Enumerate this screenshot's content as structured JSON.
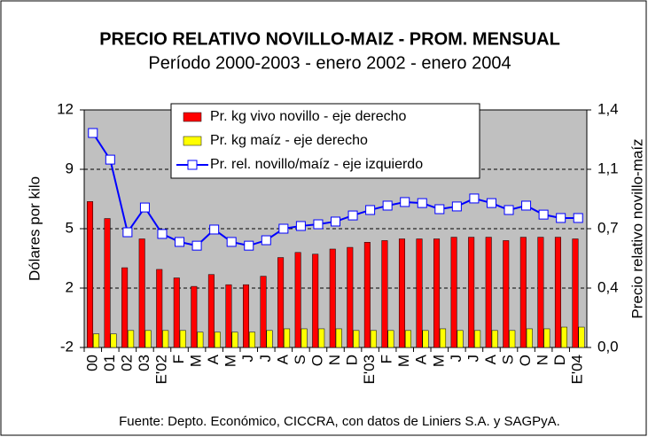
{
  "chart_data": {
    "type": "bar",
    "title": "PRECIO RELATIVO NOVILLO-MAIZ - PROM. MENSUAL",
    "subtitle": "Período 2000-2003 - enero 2002 - enero 2004",
    "ylabel": "Dólares por kilo",
    "y2label": "Precio relativo novillo-maíz",
    "source": "Fuente: Depto. Económico, CICCRA, con datos de Liniers S.A. y SAGPyA.",
    "categories": [
      "00",
      "01",
      "02",
      "03",
      "E'02",
      "F",
      "M",
      "A",
      "M",
      "J",
      "J",
      "A",
      "S",
      "O",
      "N",
      "D",
      "E'03",
      "F",
      "M",
      "A",
      "M",
      "J",
      "J",
      "A",
      "S",
      "O",
      "N",
      "D",
      "E'04"
    ],
    "series": [
      {
        "name": "Pr. kg vivo novillo - eje derecho",
        "type": "bar",
        "axis": "y2",
        "color": "#ff0000",
        "values": [
          0.86,
          0.76,
          0.47,
          0.64,
          0.46,
          0.41,
          0.36,
          0.43,
          0.37,
          0.37,
          0.42,
          0.53,
          0.56,
          0.55,
          0.58,
          0.59,
          0.62,
          0.63,
          0.64,
          0.64,
          0.64,
          0.65,
          0.65,
          0.65,
          0.63,
          0.65,
          0.65,
          0.65,
          0.64
        ]
      },
      {
        "name": "Pr. kg maíz - eje derecho",
        "type": "bar",
        "axis": "y2",
        "color": "#ffff00",
        "values": [
          0.08,
          0.08,
          0.1,
          0.1,
          0.1,
          0.1,
          0.09,
          0.09,
          0.09,
          0.09,
          0.1,
          0.11,
          0.11,
          0.11,
          0.11,
          0.1,
          0.1,
          0.1,
          0.1,
          0.1,
          0.11,
          0.1,
          0.1,
          0.1,
          0.1,
          0.11,
          0.11,
          0.12,
          0.12
        ]
      },
      {
        "name": "Pr. rel. novillo/maíz - eje izquierdo",
        "type": "line",
        "axis": "y",
        "color": "#0000ff",
        "values": [
          10.64,
          9.07,
          4.79,
          6.25,
          4.69,
          4.22,
          4.0,
          4.95,
          4.22,
          4.0,
          4.32,
          5.0,
          5.16,
          5.26,
          5.42,
          5.78,
          6.1,
          6.36,
          6.57,
          6.51,
          6.15,
          6.31,
          6.78,
          6.51,
          6.1,
          6.36,
          5.83,
          5.63,
          5.63
        ]
      }
    ],
    "ylim": [
      -2,
      12
    ],
    "yticks": [
      -2,
      {
        "value": 1.5,
        "label": "2"
      },
      5,
      {
        "value": 8.5,
        "label": "9"
      },
      12
    ],
    "y2lim": [
      0,
      1.4
    ],
    "y2ticks": [
      {
        "value": 0,
        "label": "0,0"
      },
      {
        "value": 0.35,
        "label": "0,4"
      },
      {
        "value": 0.7,
        "label": "0,7"
      },
      {
        "value": 1.05,
        "label": "1,1"
      },
      {
        "value": 1.4,
        "label": "1,4"
      }
    ],
    "grid": true,
    "legend": "top",
    "background": "#c0c0c0"
  }
}
